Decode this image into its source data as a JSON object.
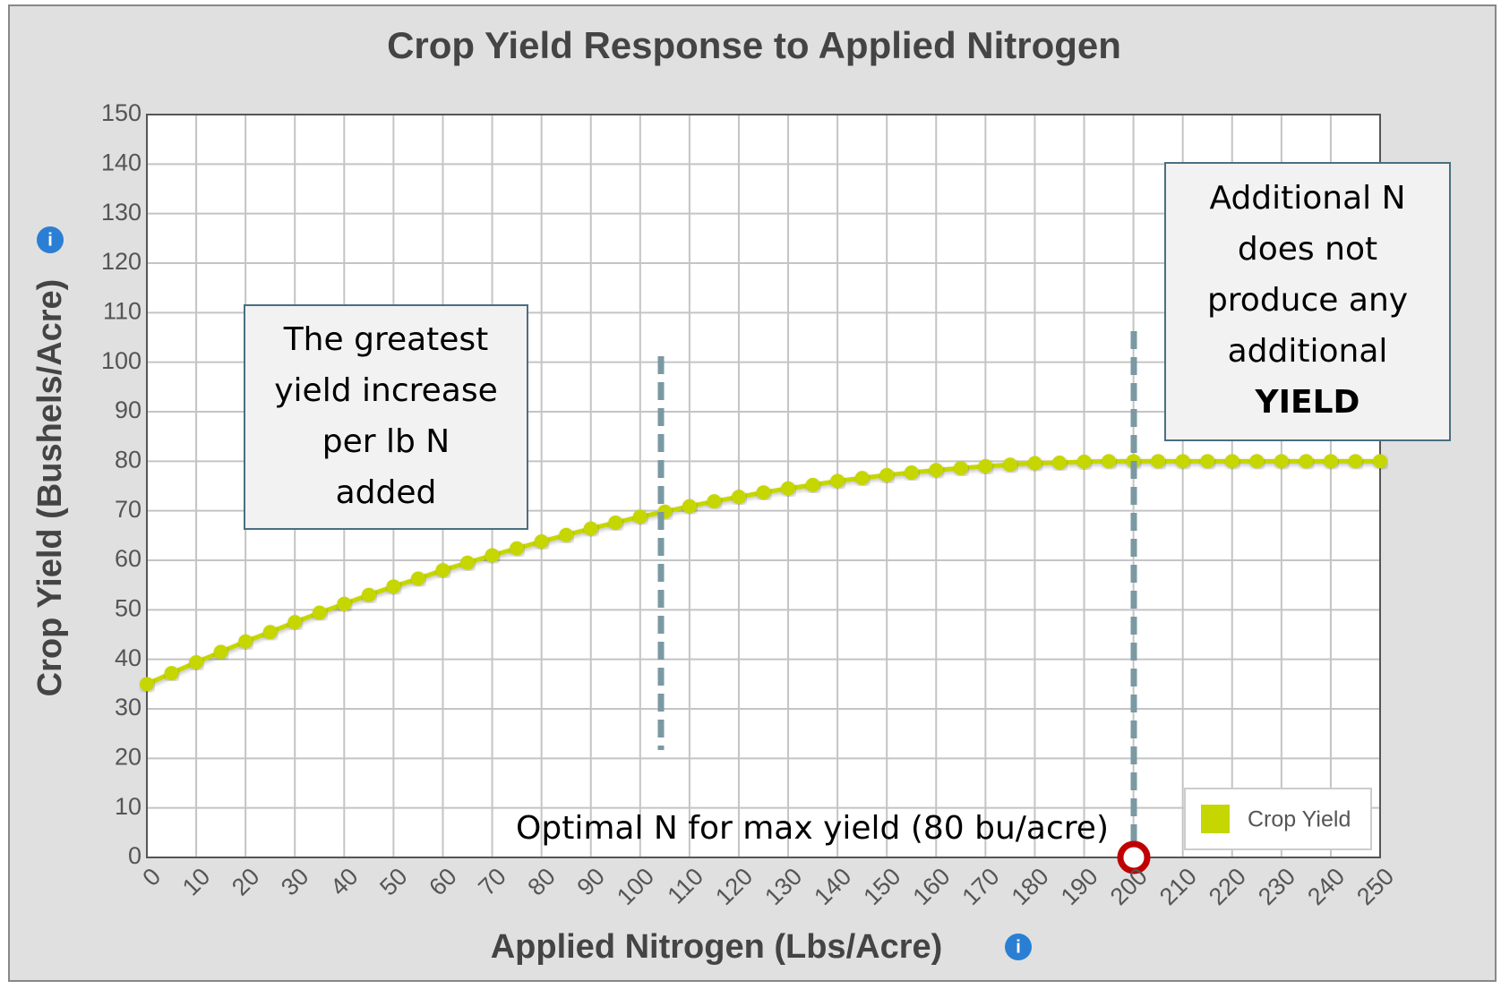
{
  "chart_data": {
    "type": "line",
    "title": "Crop Yield Response to Applied Nitrogen",
    "x_label": "Applied Nitrogen (Lbs/Acre)",
    "y_label": "Crop Yield (Bushels/Acre)",
    "x": [
      0,
      5,
      10,
      15,
      20,
      25,
      30,
      35,
      40,
      45,
      50,
      55,
      60,
      65,
      70,
      75,
      80,
      85,
      90,
      95,
      100,
      105,
      110,
      115,
      120,
      125,
      130,
      135,
      140,
      145,
      150,
      155,
      160,
      165,
      170,
      175,
      180,
      185,
      190,
      195,
      200,
      205,
      210,
      215,
      220,
      225,
      230,
      235,
      240,
      245,
      250
    ],
    "series": [
      {
        "name": "Crop Yield",
        "color": "#c5d600",
        "values": [
          35,
          37.2,
          39.4,
          41.5,
          43.6,
          45.5,
          47.5,
          49.4,
          51.2,
          53.0,
          54.7,
          56.3,
          58.0,
          59.5,
          61.0,
          62.4,
          63.8,
          65.1,
          66.4,
          67.6,
          68.8,
          69.8,
          70.9,
          71.9,
          72.8,
          73.7,
          74.5,
          75.2,
          76.0,
          76.6,
          77.2,
          77.7,
          78.2,
          78.6,
          79.0,
          79.3,
          79.6,
          79.7,
          79.9,
          80.0,
          80,
          80,
          80,
          80,
          80,
          80,
          80,
          80,
          80,
          80,
          80
        ]
      }
    ],
    "xlim": [
      0,
      250
    ],
    "xticks": [
      0,
      10,
      20,
      30,
      40,
      50,
      60,
      70,
      80,
      90,
      100,
      110,
      120,
      130,
      140,
      150,
      160,
      170,
      180,
      190,
      200,
      210,
      220,
      230,
      240,
      250
    ],
    "ylim": [
      0,
      150
    ],
    "yticks": [
      0,
      10,
      20,
      30,
      40,
      50,
      60,
      70,
      80,
      90,
      100,
      110,
      120,
      130,
      140,
      150
    ],
    "grid": true,
    "legend": "lower right",
    "annotations": [
      {
        "lines": [
          "The greatest",
          "yield increase",
          "per lb N",
          "added"
        ]
      },
      {
        "lines": [
          "Additional N",
          "does not",
          "produce any",
          "additional",
          "YIELD"
        ]
      },
      {
        "text": "Optimal N for max yield (80 bu/acre)"
      }
    ]
  }
}
